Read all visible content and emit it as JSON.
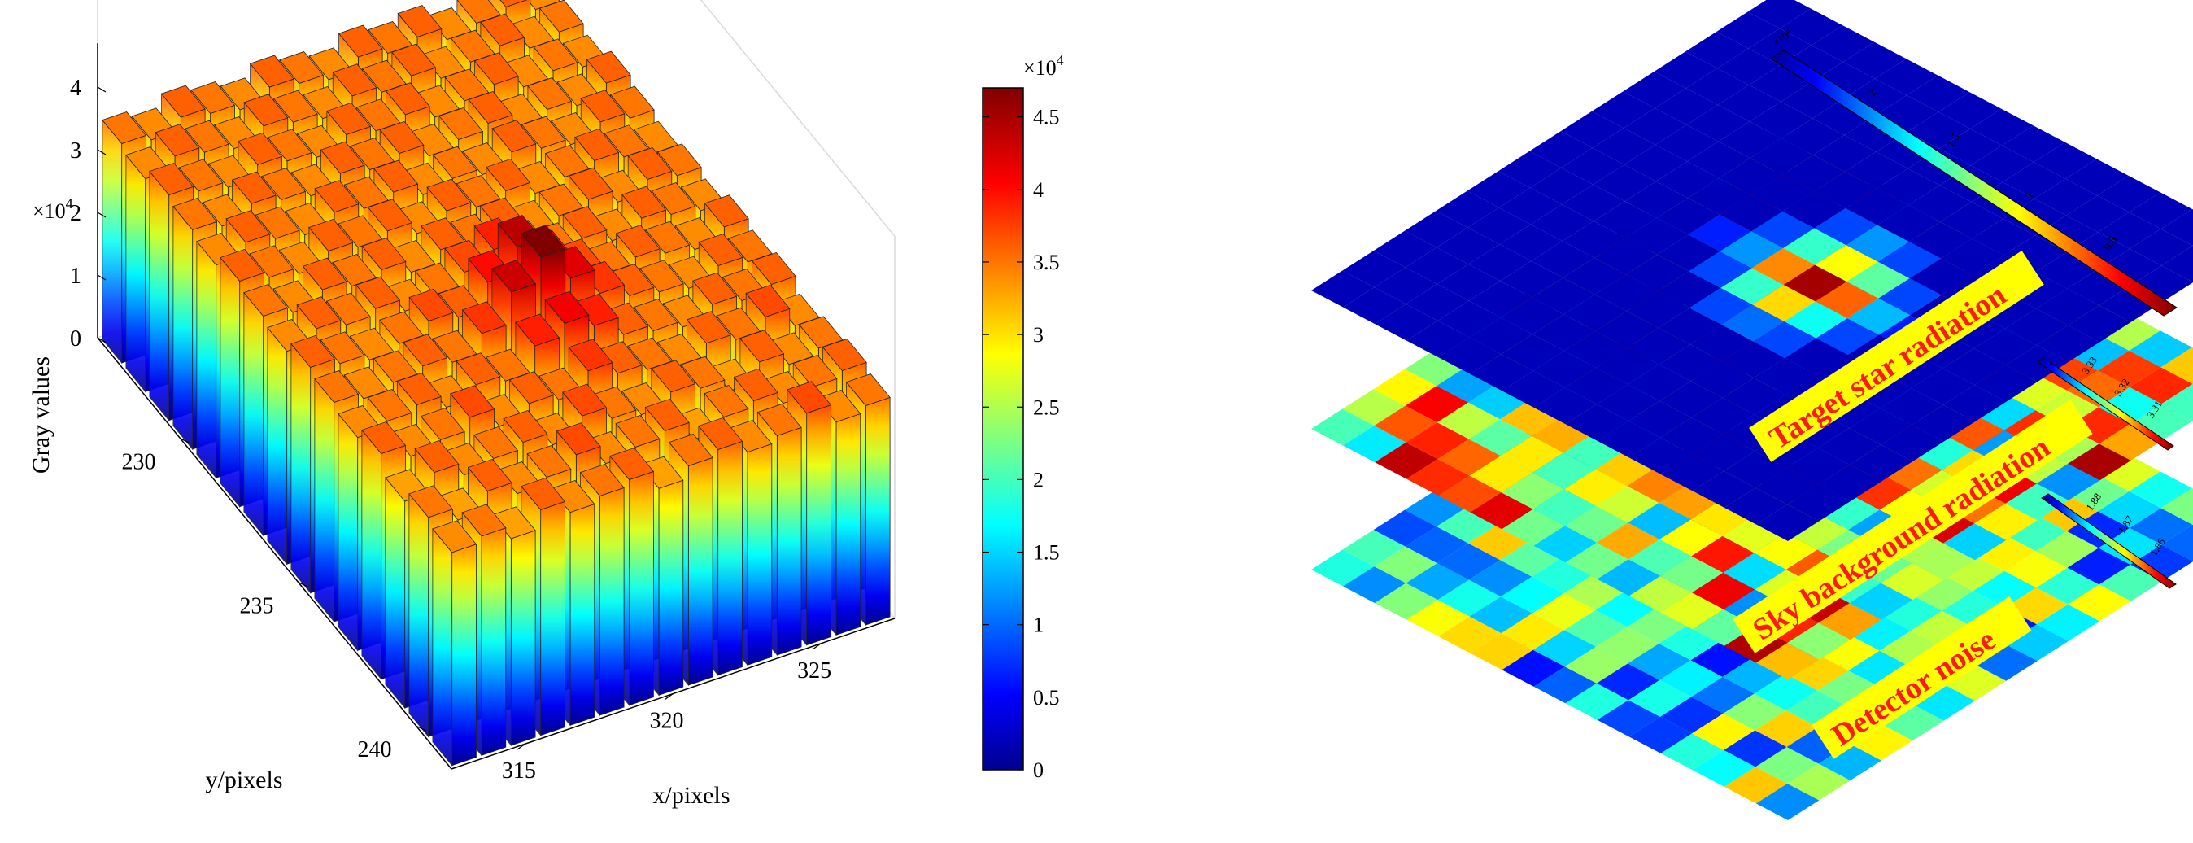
{
  "chart_data": [
    {
      "type": "bar3d",
      "zlabel": "Gray values",
      "xlabel": "x/pixels",
      "ylabel": "y/pixels",
      "z_exponent_label": "×10",
      "z_exponent_power": "4",
      "z_ticks": [
        "0",
        "1",
        "2",
        "3",
        "4"
      ],
      "x_ticks": [
        "315",
        "320",
        "325"
      ],
      "y_ticks": [
        "230",
        "235",
        "240"
      ],
      "x_range": [
        313,
        328
      ],
      "y_range": [
        228,
        242
      ],
      "zlim": [
        0,
        4.7
      ],
      "grid": true,
      "background_level": 3.4,
      "peak": {
        "x": 320,
        "y": 234,
        "value": 4.7
      },
      "heights": [
        [
          3.4,
          3.5,
          3.3,
          3.6,
          3.4,
          3.5,
          3.6,
          3.3,
          3.5,
          3.6,
          3.4,
          3.5,
          3.7,
          3.4,
          3.5
        ],
        [
          3.5,
          3.3,
          3.6,
          3.4,
          3.5,
          3.7,
          3.4,
          3.5,
          3.6,
          3.3,
          3.5,
          3.6,
          3.4,
          3.5,
          3.6
        ],
        [
          3.3,
          3.6,
          3.4,
          3.5,
          3.6,
          3.4,
          3.7,
          3.5,
          3.4,
          3.6,
          3.5,
          3.3,
          3.6,
          3.4,
          3.5
        ],
        [
          3.6,
          3.4,
          3.5,
          3.7,
          3.4,
          3.6,
          3.5,
          3.8,
          3.6,
          3.5,
          3.4,
          3.6,
          3.5,
          3.7,
          3.4
        ],
        [
          3.4,
          3.5,
          3.6,
          3.4,
          3.6,
          3.5,
          3.9,
          4.1,
          3.9,
          3.6,
          3.5,
          3.4,
          3.6,
          3.5,
          3.6
        ],
        [
          3.5,
          3.4,
          3.5,
          3.6,
          3.5,
          3.8,
          4.3,
          4.7,
          4.2,
          3.8,
          3.6,
          3.5,
          3.4,
          3.6,
          3.5
        ],
        [
          3.6,
          3.5,
          3.4,
          3.5,
          3.7,
          3.6,
          4.0,
          4.4,
          4.0,
          3.7,
          3.5,
          3.6,
          3.5,
          3.4,
          3.6
        ],
        [
          3.4,
          3.6,
          3.5,
          3.6,
          3.4,
          3.5,
          3.7,
          3.9,
          3.7,
          3.5,
          3.6,
          3.4,
          3.6,
          3.5,
          3.4
        ],
        [
          3.5,
          3.4,
          3.6,
          3.5,
          3.6,
          3.4,
          3.6,
          3.5,
          3.6,
          3.4,
          3.5,
          3.6,
          3.4,
          3.6,
          3.5
        ],
        [
          3.6,
          3.5,
          3.4,
          3.6,
          3.5,
          3.6,
          3.4,
          3.6,
          3.5,
          3.6,
          3.4,
          3.5,
          3.6,
          3.5,
          3.4
        ],
        [
          3.4,
          3.6,
          3.5,
          3.4,
          3.6,
          3.5,
          3.6,
          3.4,
          3.5,
          3.4,
          3.6,
          3.5,
          3.4,
          3.6,
          3.5
        ],
        [
          3.5,
          3.4,
          3.6,
          3.5,
          3.4,
          3.6,
          3.5,
          3.6,
          3.4,
          3.5,
          3.6,
          3.4,
          3.5,
          3.4,
          3.6
        ],
        [
          3.6,
          3.5,
          3.4,
          3.6,
          3.5,
          3.4,
          3.6,
          3.5,
          3.6,
          3.4,
          3.5,
          3.6,
          3.4,
          3.5,
          3.4
        ],
        [
          3.4,
          3.6,
          3.5,
          3.4,
          3.6,
          3.5,
          3.4,
          3.6,
          3.5,
          3.6,
          3.4,
          3.5,
          3.6,
          3.4,
          3.5
        ],
        [
          3.5,
          3.4,
          3.6,
          3.5,
          3.4,
          3.6,
          3.5,
          3.4,
          3.6,
          3.5,
          3.6,
          3.4,
          3.5,
          3.6,
          3.4
        ]
      ]
    },
    {
      "type": "colorbar",
      "colormap": "jet",
      "exponent_label": "×10",
      "exponent_power": "4",
      "range": [
        0,
        4.7
      ],
      "ticks": [
        "0",
        "0.5",
        "1",
        "1.5",
        "2",
        "2.5",
        "3",
        "3.5",
        "4",
        "4.5"
      ],
      "tick_values": [
        0,
        0.5,
        1,
        1.5,
        2,
        2.5,
        3,
        3.5,
        4,
        4.5
      ]
    },
    {
      "type": "heatmap",
      "layer_label": "Target star radiation",
      "colorbar_exponent_label": "×10",
      "colorbar_exponent_power": "4",
      "colorbar_ticks": [
        "0.5",
        "1",
        "1.5",
        "2"
      ],
      "colorbar_tick_values": [
        0.5,
        1,
        1.5,
        2
      ],
      "range": [
        0,
        2.3
      ],
      "rows": 15,
      "cols": 15,
      "peak_cells": [
        {
          "r": 6,
          "c": 6,
          "v": 0.3
        },
        {
          "r": 6,
          "c": 7,
          "v": 0.5
        },
        {
          "r": 6,
          "c": 8,
          "v": 0.3
        },
        {
          "r": 7,
          "c": 5,
          "v": 0.3
        },
        {
          "r": 7,
          "c": 6,
          "v": 0.9
        },
        {
          "r": 7,
          "c": 7,
          "v": 1.7
        },
        {
          "r": 7,
          "c": 8,
          "v": 0.9
        },
        {
          "r": 7,
          "c": 9,
          "v": 0.3
        },
        {
          "r": 8,
          "c": 5,
          "v": 0.4
        },
        {
          "r": 8,
          "c": 6,
          "v": 1.5
        },
        {
          "r": 8,
          "c": 7,
          "v": 2.3
        },
        {
          "r": 8,
          "c": 8,
          "v": 1.4
        },
        {
          "r": 8,
          "c": 9,
          "v": 0.5
        },
        {
          "r": 9,
          "c": 5,
          "v": 0.3
        },
        {
          "r": 9,
          "c": 6,
          "v": 0.8
        },
        {
          "r": 9,
          "c": 7,
          "v": 1.8
        },
        {
          "r": 9,
          "c": 8,
          "v": 1.0
        },
        {
          "r": 9,
          "c": 9,
          "v": 0.3
        },
        {
          "r": 10,
          "c": 6,
          "v": 0.3
        },
        {
          "r": 10,
          "c": 7,
          "v": 0.6
        },
        {
          "r": 10,
          "c": 8,
          "v": 0.3
        },
        {
          "r": 5,
          "c": 7,
          "v": 0.2
        },
        {
          "r": 11,
          "c": 7,
          "v": 0.2
        }
      ]
    },
    {
      "type": "heatmap",
      "layer_label": "Sky background radiation",
      "colorbar_ticks": [
        "3.33",
        "3.32",
        "3.31"
      ],
      "colorbar_tick_values": [
        3.33,
        3.32,
        3.31
      ],
      "range": [
        3.3,
        3.34
      ],
      "rows": 15,
      "cols": 15
    },
    {
      "type": "heatmap",
      "layer_label": "Detector noise",
      "colorbar_ticks": [
        "1.88",
        "1.87",
        "1.86"
      ],
      "colorbar_tick_values": [
        1.88,
        1.87,
        1.86
      ],
      "range": [
        1.85,
        1.89
      ],
      "rows": 15,
      "cols": 15
    }
  ]
}
